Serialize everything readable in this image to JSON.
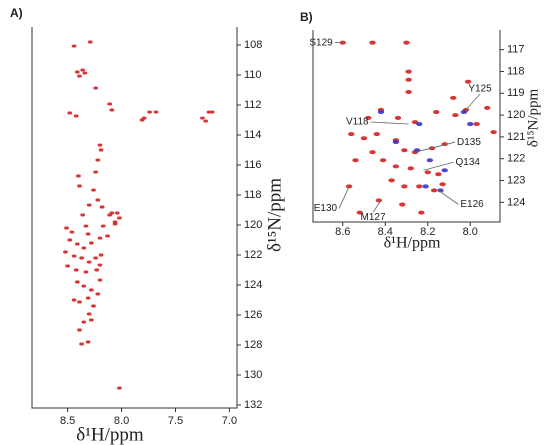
{
  "chart_data": [
    {
      "type": "scatter",
      "panel_label": "A)",
      "xlabel": "δ¹H/ppm",
      "ylabel": "δ¹⁵N/ppm",
      "xlim": [
        8.83,
        6.93
      ],
      "ylim": [
        106.8,
        132.2
      ],
      "xticks": [
        8.5,
        {
          "value": 8.0,
          "label": "8.0"
        },
        7.5,
        {
          "value": 7.0,
          "label": "7.0"
        }
      ],
      "yticks": [
        108,
        110,
        112,
        114,
        116,
        118,
        120,
        122,
        124,
        126,
        128,
        130,
        132
      ],
      "series": [
        {
          "color": "#d42020",
          "x": [
            8.44,
            8.29,
            8.41,
            8.36,
            8.39,
            8.34,
            8.48,
            8.24,
            8.11,
            8.09,
            7.74,
            7.68,
            7.79,
            7.81,
            7.19,
            7.16,
            7.25,
            7.22,
            8.42,
            8.2,
            8.19,
            8.22,
            8.24,
            8.4,
            8.39,
            8.26,
            8.22,
            8.3,
            8.18,
            8.09,
            8.04,
            8.02,
            8.06,
            8.11,
            8.36,
            8.51,
            8.46,
            8.33,
            8.31,
            8.48,
            8.41,
            8.35,
            8.28,
            8.2,
            8.13,
            8.52,
            8.44,
            8.37,
            8.3,
            8.24,
            8.19,
            8.5,
            8.42,
            8.33,
            8.23,
            8.2,
            8.41,
            8.35,
            8.28,
            8.22,
            8.31,
            8.39,
            8.26,
            8.3,
            8.35,
            8.39,
            8.28,
            8.31,
            8.37,
            8.02,
            8.44,
            8.2,
            8.17,
            8.06
          ],
          "y": [
            108.07,
            107.8,
            109.8,
            109.67,
            110.07,
            109.87,
            112.53,
            110.87,
            111.93,
            112.33,
            112.47,
            112.47,
            112.87,
            113.0,
            112.47,
            112.47,
            112.87,
            113.07,
            112.73,
            114.67,
            115.0,
            115.67,
            116.47,
            116.73,
            117.4,
            117.67,
            118.33,
            118.67,
            118.8,
            119.2,
            119.2,
            119.53,
            119.8,
            119.33,
            119.33,
            120.2,
            120.47,
            120.07,
            120.6,
            121.0,
            121.27,
            121.53,
            121.2,
            120.87,
            120.73,
            121.8,
            122.07,
            122.2,
            122.47,
            122.2,
            122.0,
            122.73,
            123.0,
            123.13,
            123.0,
            122.67,
            123.8,
            124.07,
            124.33,
            124.6,
            124.87,
            125.13,
            125.4,
            125.93,
            126.47,
            127.0,
            126.33,
            127.8,
            127.93,
            130.87,
            125.0,
            123.67,
            120.07,
            119.93
          ]
        }
      ]
    },
    {
      "type": "scatter",
      "panel_label": "B)",
      "xlabel": "δ¹H/ppm",
      "ylabel": "δ¹⁵N/ppm",
      "xlim": [
        8.74,
        7.86
      ],
      "ylim": [
        116.1,
        124.9
      ],
      "xticks": [
        8.6,
        8.4,
        8.2,
        {
          "value": 8.0,
          "label": "8.0"
        }
      ],
      "yticks": [
        117,
        118,
        119,
        120,
        121,
        122,
        123,
        124
      ],
      "series": [
        {
          "color": "#d42020",
          "x": [
            8.6,
            8.46,
            8.3,
            8.29,
            8.29,
            8.29,
            8.01,
            8.08,
            8.02,
            7.92,
            8.42,
            8.48,
            8.34,
            8.26,
            8.16,
            8.07,
            7.97,
            7.89,
            8.56,
            8.5,
            8.44,
            8.35,
            8.31,
            8.26,
            8.18,
            8.12,
            8.46,
            8.54,
            8.41,
            8.35,
            8.28,
            8.2,
            8.15,
            8.37,
            8.31,
            8.24,
            8.17,
            8.13,
            8.57,
            8.43,
            8.32,
            8.23,
            8.52
          ],
          "y": [
            116.68,
            116.68,
            116.68,
            118.01,
            118.38,
            118.94,
            118.47,
            119.21,
            119.76,
            119.67,
            119.76,
            120.13,
            120.13,
            120.32,
            119.86,
            120.0,
            120.41,
            120.78,
            120.87,
            121.06,
            120.87,
            121.15,
            121.61,
            121.7,
            121.52,
            121.33,
            121.7,
            122.07,
            122.07,
            122.35,
            122.44,
            122.62,
            122.71,
            122.99,
            123.27,
            123.27,
            123.45,
            123.17,
            123.27,
            123.91,
            124.1,
            124.47,
            124.47
          ]
        },
        {
          "color": "#3535c8",
          "x": [
            8.24,
            8.25,
            8.19,
            8.14,
            8.03,
            8.42,
            8.0,
            8.12,
            8.35,
            8.21
          ],
          "y": [
            120.41,
            121.61,
            122.07,
            123.45,
            119.86,
            119.86,
            120.41,
            122.53,
            121.24,
            123.27
          ]
        }
      ],
      "annotations": [
        {
          "text": "S129",
          "x": 8.6,
          "y": 116.68
        },
        {
          "text": "Y125",
          "x": 8.02,
          "y": 119.76
        },
        {
          "text": "V118",
          "x": 8.29,
          "y": 120.41
        },
        {
          "text": "D135",
          "x": 8.26,
          "y": 121.7
        },
        {
          "text": "Q134",
          "x": 8.22,
          "y": 122.53
        },
        {
          "text": "E130",
          "x": 8.57,
          "y": 123.27
        },
        {
          "text": "M127",
          "x": 8.42,
          "y": 123.91
        },
        {
          "text": "E126",
          "x": 8.15,
          "y": 123.45
        }
      ]
    }
  ]
}
